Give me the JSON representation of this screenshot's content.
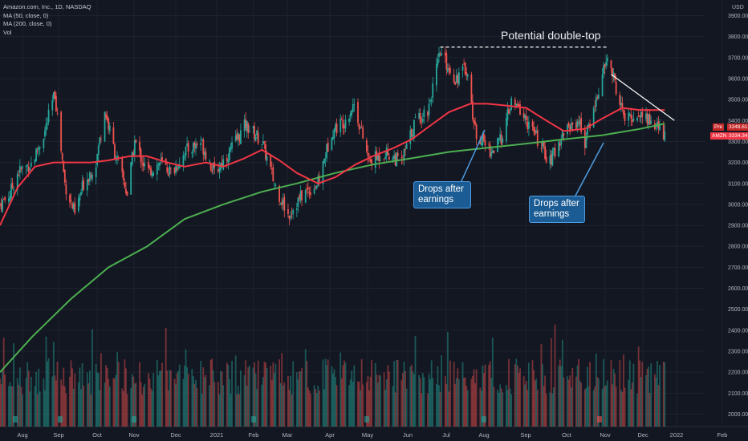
{
  "legend": {
    "title": "Amazon.com, Inc., 1D, NASDAQ",
    "ma50": "MA (50, close, 0)",
    "ma200": "MA (200, close, 0)",
    "vol": "Vol"
  },
  "currency": "USD",
  "annotations": {
    "double_top": "Potential double-top",
    "callout1_line1": "Drops after",
    "callout1_line2": "earnings",
    "callout2_line1": "Drops after",
    "callout2_line2": "earnings"
  },
  "price_tags": {
    "pre_label": "Pre",
    "pre_value": "3348.61",
    "amzn_label": "AMZN",
    "amzn_value": "3334.34"
  },
  "colors": {
    "background": "#131722",
    "up": "#26a69a",
    "down": "#ef5350",
    "ma50": "#f23645",
    "ma200": "#4caf50",
    "grid": "#1e222d",
    "axis_text": "#b2b5be"
  },
  "chart_data": {
    "type": "candlestick",
    "title": "Amazon.com, Inc., 1D, NASDAQ",
    "y_axis": {
      "ticks": [
        2000,
        2100,
        2200,
        2300,
        2400,
        2500,
        2600,
        2700,
        2800,
        2900,
        3000,
        3100,
        3200,
        3300,
        3400,
        3500,
        3600,
        3700,
        3800,
        3900
      ],
      "tick_labels": [
        "2000.00",
        "2100.00",
        "2200.00",
        "2300.00",
        "2400.00",
        "2500.00",
        "2600.00",
        "2700.00",
        "2800.00",
        "2900.00",
        "3000.00",
        "3100.00",
        "3200.00",
        "3300.00",
        "3400.00",
        "3500.00",
        "3600.00",
        "3700.00",
        "3800.00",
        "3900.00"
      ],
      "range": [
        1960,
        3950
      ]
    },
    "x_axis": {
      "labels": [
        "Aug",
        "Sep",
        "Oct",
        "Nov",
        "Dec",
        "2021",
        "Feb",
        "Mar",
        "Apr",
        "May",
        "Jun",
        "Jul",
        "Aug",
        "Sep",
        "Oct",
        "Nov",
        "Dec",
        "2022",
        "Feb"
      ],
      "range": [
        "2020-07-20",
        "2022-02-05"
      ]
    },
    "grid": true,
    "price_path": [
      [
        "2020-07-20",
        3000
      ],
      [
        "2020-07-28",
        3050
      ],
      [
        "2020-08-03",
        3150
      ],
      [
        "2020-08-15",
        3200
      ],
      [
        "2020-08-25",
        3350
      ],
      [
        "2020-09-02",
        3530
      ],
      [
        "2020-09-10",
        3100
      ],
      [
        "2020-09-18",
        2950
      ],
      [
        "2020-09-25",
        3100
      ],
      [
        "2020-10-05",
        3200
      ],
      [
        "2020-10-12",
        3450
      ],
      [
        "2020-10-20",
        3250
      ],
      [
        "2020-10-30",
        3050
      ],
      [
        "2020-11-05",
        3300
      ],
      [
        "2020-11-15",
        3150
      ],
      [
        "2020-11-25",
        3200
      ],
      [
        "2020-12-05",
        3150
      ],
      [
        "2020-12-15",
        3250
      ],
      [
        "2020-12-28",
        3300
      ],
      [
        "2021-01-08",
        3150
      ],
      [
        "2021-01-20",
        3250
      ],
      [
        "2021-02-02",
        3380
      ],
      [
        "2021-02-15",
        3300
      ],
      [
        "2021-02-25",
        3100
      ],
      [
        "2021-03-08",
        2950
      ],
      [
        "2021-03-20",
        3050
      ],
      [
        "2021-04-01",
        3100
      ],
      [
        "2021-04-12",
        3350
      ],
      [
        "2021-04-22",
        3400
      ],
      [
        "2021-04-30",
        3480
      ],
      [
        "2021-05-12",
        3200
      ],
      [
        "2021-05-25",
        3250
      ],
      [
        "2021-06-07",
        3200
      ],
      [
        "2021-06-18",
        3400
      ],
      [
        "2021-06-28",
        3450
      ],
      [
        "2021-07-08",
        3720
      ],
      [
        "2021-07-20",
        3600
      ],
      [
        "2021-07-29",
        3650
      ],
      [
        "2021-08-05",
        3350
      ],
      [
        "2021-08-18",
        3250
      ],
      [
        "2021-08-25",
        3300
      ],
      [
        "2021-09-03",
        3480
      ],
      [
        "2021-09-10",
        3450
      ],
      [
        "2021-09-20",
        3350
      ],
      [
        "2021-10-04",
        3200
      ],
      [
        "2021-10-15",
        3350
      ],
      [
        "2021-10-27",
        3400
      ],
      [
        "2021-11-01",
        3300
      ],
      [
        "2021-11-10",
        3500
      ],
      [
        "2021-11-19",
        3700
      ],
      [
        "2021-11-24",
        3600
      ],
      [
        "2021-12-03",
        3400
      ],
      [
        "2021-12-15",
        3430
      ],
      [
        "2021-12-23",
        3400
      ],
      [
        "2022-01-04",
        3334
      ]
    ],
    "ma50": [
      [
        "2020-07-20",
        2900
      ],
      [
        "2020-08-03",
        3080
      ],
      [
        "2020-08-17",
        3180
      ],
      [
        "2020-09-01",
        3200
      ],
      [
        "2020-09-15",
        3200
      ],
      [
        "2020-10-01",
        3200
      ],
      [
        "2020-10-15",
        3210
      ],
      [
        "2020-11-01",
        3230
      ],
      [
        "2020-11-15",
        3230
      ],
      [
        "2020-12-01",
        3200
      ],
      [
        "2020-12-15",
        3180
      ],
      [
        "2021-01-01",
        3200
      ],
      [
        "2021-01-15",
        3180
      ],
      [
        "2021-02-01",
        3220
      ],
      [
        "2021-02-15",
        3260
      ],
      [
        "2021-03-01",
        3210
      ],
      [
        "2021-03-15",
        3150
      ],
      [
        "2021-04-01",
        3100
      ],
      [
        "2021-04-15",
        3130
      ],
      [
        "2021-05-01",
        3190
      ],
      [
        "2021-05-15",
        3230
      ],
      [
        "2021-06-01",
        3270
      ],
      [
        "2021-06-15",
        3310
      ],
      [
        "2021-07-01",
        3380
      ],
      [
        "2021-07-15",
        3440
      ],
      [
        "2021-08-01",
        3480
      ],
      [
        "2021-08-15",
        3480
      ],
      [
        "2021-09-01",
        3470
      ],
      [
        "2021-09-15",
        3460
      ],
      [
        "2021-10-01",
        3400
      ],
      [
        "2021-10-15",
        3350
      ],
      [
        "2021-11-01",
        3360
      ],
      [
        "2021-11-15",
        3410
      ],
      [
        "2021-12-01",
        3460
      ],
      [
        "2021-12-15",
        3450
      ],
      [
        "2022-01-04",
        3450
      ]
    ],
    "ma200": [
      [
        "2020-07-20",
        2200
      ],
      [
        "2020-08-15",
        2370
      ],
      [
        "2020-09-15",
        2550
      ],
      [
        "2020-10-15",
        2700
      ],
      [
        "2020-11-15",
        2800
      ],
      [
        "2020-12-15",
        2930
      ],
      [
        "2021-01-15",
        3000
      ],
      [
        "2021-02-15",
        3060
      ],
      [
        "2021-03-15",
        3100
      ],
      [
        "2021-04-15",
        3150
      ],
      [
        "2021-05-15",
        3190
      ],
      [
        "2021-06-15",
        3220
      ],
      [
        "2021-07-15",
        3250
      ],
      [
        "2021-08-15",
        3270
      ],
      [
        "2021-09-15",
        3290
      ],
      [
        "2021-10-15",
        3310
      ],
      [
        "2021-11-15",
        3330
      ],
      [
        "2021-12-15",
        3360
      ],
      [
        "2022-01-04",
        3385
      ]
    ],
    "annotations": [
      {
        "text": "Potential double-top",
        "type": "dashed-line",
        "from": [
          "2021-07-08",
          3750
        ],
        "to": [
          "2021-11-19",
          3750
        ]
      },
      {
        "text": "Drops after earnings",
        "date": "2021-07-29"
      },
      {
        "text": "Drops after earnings",
        "date": "2021-10-28"
      }
    ],
    "trendline": {
      "from": [
        "2021-11-22",
        3620
      ],
      "to": [
        "2022-01-04",
        3400
      ]
    },
    "last_price": 3334.34,
    "premarket_price": 3348.61
  }
}
